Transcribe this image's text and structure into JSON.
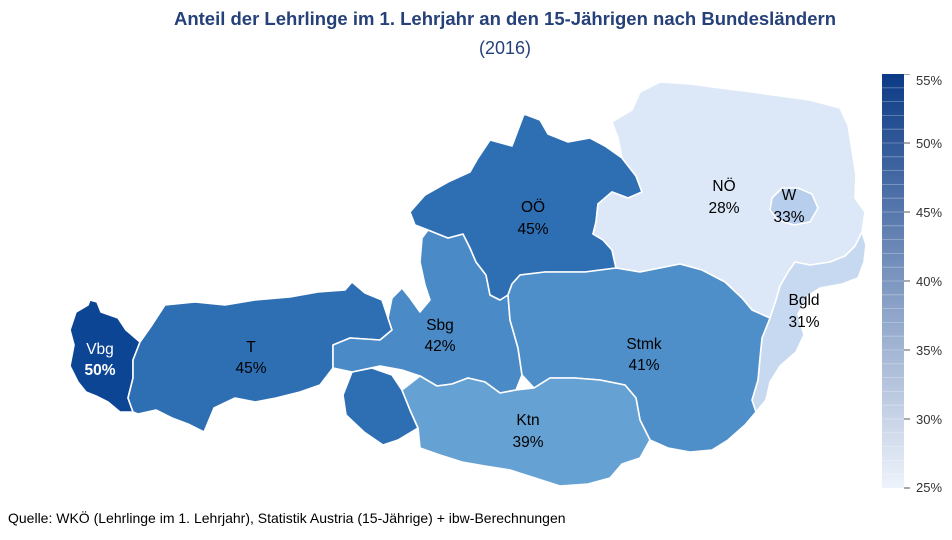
{
  "title": "Anteil der Lehrlinge im 1. Lehrjahr an den 15-Jährigen nach Bundesländern",
  "subtitle": "(2016)",
  "source": "Quelle: WKÖ (Lehrlinge im 1. Lehrjahr), Statistik Austria (15-Jährige) + ibw-Berechnungen",
  "legend": {
    "min": 25,
    "max": 55,
    "color_low": "#eef3fb",
    "color_high": "#0b3a85",
    "ticks": [
      "55%",
      "50%",
      "45%",
      "40%",
      "35%",
      "30%",
      "25%"
    ]
  },
  "regions": [
    {
      "id": "vbg",
      "abbr": "Vbg",
      "value": 50,
      "label": "50%",
      "color": "#0c4594"
    },
    {
      "id": "t",
      "abbr": "T",
      "value": 45,
      "label": "45%",
      "color": "#2e6fb4"
    },
    {
      "id": "sbg",
      "abbr": "Sbg",
      "value": 42,
      "label": "42%",
      "color": "#4a8ac6"
    },
    {
      "id": "ooe",
      "abbr": "OÖ",
      "value": 45,
      "label": "45%",
      "color": "#2e6fb4"
    },
    {
      "id": "noe",
      "abbr": "NÖ",
      "value": 28,
      "label": "28%",
      "color": "#dce8f7"
    },
    {
      "id": "w",
      "abbr": "W",
      "value": 33,
      "label": "33%",
      "color": "#b7cfec"
    },
    {
      "id": "bgld",
      "abbr": "Bgld",
      "value": 31,
      "label": "31%",
      "color": "#c7d9f0"
    },
    {
      "id": "stmk",
      "abbr": "Stmk",
      "value": 41,
      "label": "41%",
      "color": "#4e8fca"
    },
    {
      "id": "ktn",
      "abbr": "Ktn",
      "value": 39,
      "label": "39%",
      "color": "#65a1d3"
    }
  ]
}
